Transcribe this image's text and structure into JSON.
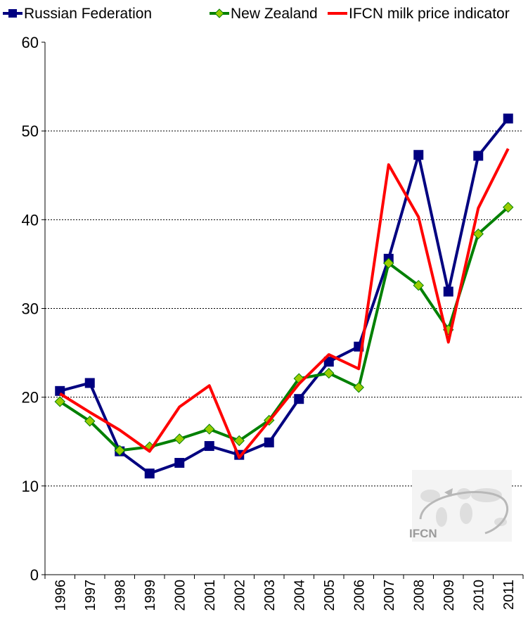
{
  "chart_data": {
    "type": "line",
    "x": [
      "1996",
      "1997",
      "1998",
      "1999",
      "2000",
      "2001",
      "2002",
      "2003",
      "2004",
      "2005",
      "2006",
      "2007",
      "2008",
      "2009",
      "2010",
      "2011"
    ],
    "ylim": [
      0,
      60
    ],
    "yticks": [
      0,
      10,
      20,
      30,
      40,
      50,
      60
    ],
    "grid": true,
    "legend_position": "top",
    "series": [
      {
        "name": "Russian Federation",
        "color": "#000080",
        "marker": "square",
        "values": [
          20.7,
          21.6,
          13.9,
          11.4,
          12.6,
          14.5,
          13.5,
          14.9,
          19.8,
          24.0,
          25.7,
          35.6,
          47.3,
          31.9,
          47.2,
          51.4
        ]
      },
      {
        "name": "New Zealand",
        "color": "#008000",
        "marker_color": "#99CC00",
        "marker": "diamond",
        "values": [
          19.5,
          17.3,
          14.0,
          14.4,
          15.3,
          16.4,
          15.1,
          17.4,
          22.1,
          22.7,
          21.1,
          35.1,
          32.6,
          27.6,
          38.4,
          41.4
        ]
      },
      {
        "name": "IFCN milk price indicator",
        "color": "#FF0000",
        "marker": "none",
        "values": [
          20.4,
          18.3,
          16.3,
          13.9,
          18.9,
          21.3,
          13.2,
          17.3,
          21.5,
          24.8,
          23.2,
          46.2,
          40.3,
          26.2,
          41.3,
          48.0
        ]
      }
    ],
    "watermark": "IFCN"
  }
}
